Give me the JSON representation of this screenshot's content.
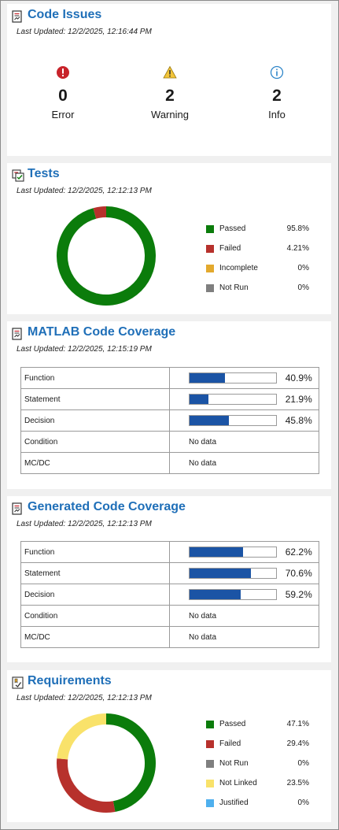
{
  "code_issues": {
    "title": "Code Issues",
    "updated": "Last Updated: 12/2/2025, 12:16:44 PM",
    "items": [
      {
        "count": "0",
        "label": "Error",
        "icon": "error-icon",
        "color": "#c8232a"
      },
      {
        "count": "2",
        "label": "Warning",
        "icon": "warning-icon",
        "color": "#e8b12a"
      },
      {
        "count": "2",
        "label": "Info",
        "icon": "info-icon",
        "color": "#2f86c9"
      }
    ]
  },
  "tests": {
    "title": "Tests",
    "updated": "Last Updated: 12/2/2025, 12:12:13 PM",
    "legend": [
      {
        "name": "Passed",
        "pct": "95.8%",
        "value": 95.8,
        "color": "#0b7c0b"
      },
      {
        "name": "Failed",
        "pct": "4.21%",
        "value": 4.21,
        "color": "#b7312c"
      },
      {
        "name": "Incomplete",
        "pct": "0%",
        "value": 0,
        "color": "#e3a92d"
      },
      {
        "name": "Not Run",
        "pct": "0%",
        "value": 0,
        "color": "#7f7f7f"
      }
    ]
  },
  "matlab_coverage": {
    "title": "MATLAB Code Coverage",
    "updated": "Last Updated: 12/2/2025, 12:15:19 PM",
    "rows": [
      {
        "metric": "Function",
        "pct": "40.9%",
        "value": 40.9
      },
      {
        "metric": "Statement",
        "pct": "21.9%",
        "value": 21.9
      },
      {
        "metric": "Decision",
        "pct": "45.8%",
        "value": 45.8
      },
      {
        "metric": "Condition",
        "text": "No data"
      },
      {
        "metric": "MC/DC",
        "text": "No data"
      }
    ]
  },
  "generated_coverage": {
    "title": "Generated Code Coverage",
    "updated": "Last Updated: 12/2/2025, 12:12:13 PM",
    "rows": [
      {
        "metric": "Function",
        "pct": "62.2%",
        "value": 62.2
      },
      {
        "metric": "Statement",
        "pct": "70.6%",
        "value": 70.6
      },
      {
        "metric": "Decision",
        "pct": "59.2%",
        "value": 59.2
      },
      {
        "metric": "Condition",
        "text": "No data"
      },
      {
        "metric": "MC/DC",
        "text": "No data"
      }
    ]
  },
  "requirements": {
    "title": "Requirements",
    "updated": "Last Updated: 12/2/2025, 12:12:13 PM",
    "legend": [
      {
        "name": "Passed",
        "pct": "47.1%",
        "value": 47.1,
        "color": "#0b7c0b"
      },
      {
        "name": "Failed",
        "pct": "29.4%",
        "value": 29.4,
        "color": "#b7312c"
      },
      {
        "name": "Not Run",
        "pct": "0%",
        "value": 0,
        "color": "#7f7f7f"
      },
      {
        "name": "Not Linked",
        "pct": "23.5%",
        "value": 23.5,
        "color": "#f9e26a"
      },
      {
        "name": "Justified",
        "pct": "0%",
        "value": 0,
        "color": "#4fb0ee"
      }
    ]
  }
}
